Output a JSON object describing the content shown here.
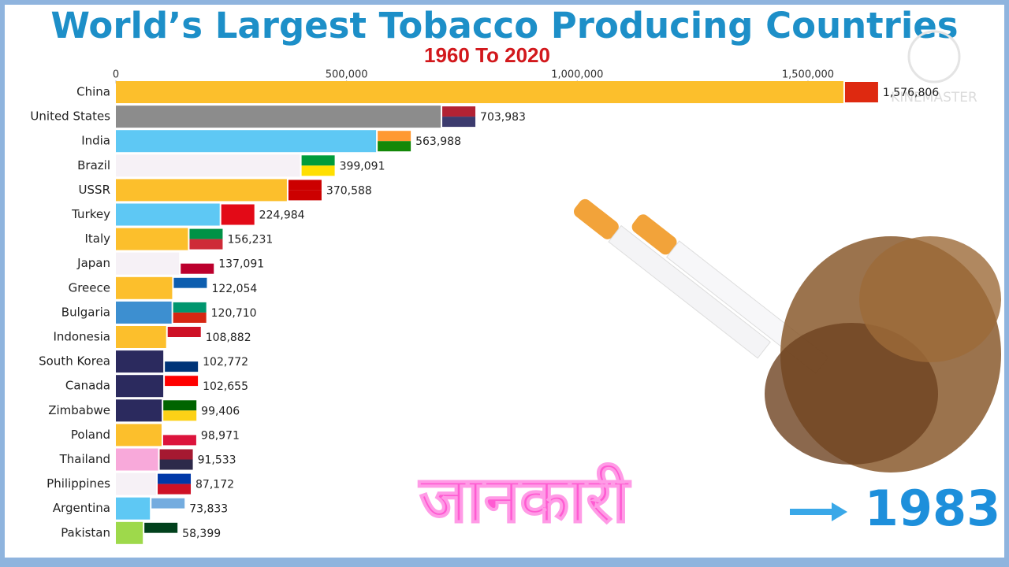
{
  "chart_data": {
    "type": "bar",
    "orientation": "horizontal",
    "title": "World’s Largest Tobacco Producing Countries",
    "subtitle": "1960 To 2020",
    "year": "1983",
    "annotation": "जानकारी",
    "watermark": "KINEMASTER",
    "categories": [
      "China",
      "United States",
      "India",
      "Brazil",
      "USSR",
      "Turkey",
      "Italy",
      "Japan",
      "Greece",
      "Bulgaria",
      "Indonesia",
      "South Korea",
      "Canada",
      "Zimbabwe",
      "Poland",
      "Thailand",
      "Philippines",
      "Argentina",
      "Pakistan"
    ],
    "values": [
      1576806,
      703983,
      563988,
      399091,
      370588,
      224984,
      156231,
      137091,
      122054,
      120710,
      108882,
      102772,
      102655,
      99406,
      98971,
      91533,
      87172,
      73833,
      58399
    ],
    "value_labels": [
      "1,576,806",
      "703,983",
      "563,988",
      "399,091",
      "370,588",
      "224,984",
      "156,231",
      "137,091",
      "122,054",
      "120,710",
      "108,882",
      "102,772",
      "102,655",
      "99,406",
      "98,971",
      "91,533",
      "87,172",
      "73,833",
      "58,399"
    ],
    "colors": [
      "#fcbf2c",
      "#8c8c8c",
      "#5ec8f4",
      "#f6f1f6",
      "#fcbf2c",
      "#5ec8f4",
      "#fcbf2c",
      "#f6f1f6",
      "#fcbf2c",
      "#3d8fd0",
      "#fcbf2c",
      "#2b2a5e",
      "#2b2a5e",
      "#2b2a5e",
      "#fcbf2c",
      "#f8a9da",
      "#f6f1f6",
      "#5ec8f4",
      "#9ed94b"
    ],
    "xlim": [
      0,
      1600000
    ],
    "xticks": [
      0,
      {
        "value": 500000,
        "label": "500,000"
      },
      {
        "value": 1000000,
        "label": "1,000,000"
      },
      {
        "value": 1500000,
        "label": "1,500,000"
      }
    ]
  }
}
